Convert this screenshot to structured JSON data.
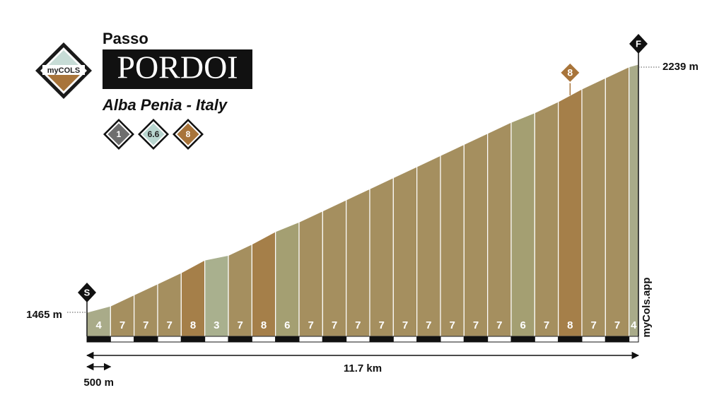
{
  "chart_data": {
    "type": "climb-profile",
    "prefix": "Passo",
    "title": "PORDOI",
    "subtitle": "Alba Penia - Italy",
    "logo": "myCOLS",
    "credit": "myCols.app",
    "badges": [
      1,
      6.6,
      8
    ],
    "badge_colors": [
      "#6e6e6e",
      "#b9d6d0",
      "#a8743a"
    ],
    "start_label": "S",
    "finish_label": "F",
    "values": [
      4,
      7,
      7,
      7,
      8,
      3,
      7,
      8,
      6,
      7,
      7,
      7,
      7,
      7,
      7,
      7,
      7,
      7,
      6,
      7,
      8,
      7,
      7,
      4
    ],
    "segment_km": [
      0.5,
      0.5,
      0.5,
      0.5,
      0.5,
      0.5,
      0.5,
      0.5,
      0.5,
      0.5,
      0.5,
      0.5,
      0.5,
      0.5,
      0.5,
      0.5,
      0.5,
      0.5,
      0.5,
      0.5,
      0.5,
      0.5,
      0.5,
      0.2
    ],
    "grade_colors": {
      "3": "#a9b08e",
      "4": "#a9ab89",
      "6": "#a49f72",
      "7": "#a58f5f",
      "8": "#a57f49"
    },
    "max_grade_marker": {
      "segment": 20,
      "label": 8
    },
    "ylim": [
      1465,
      2239
    ],
    "yticks": [
      {
        "value": 1465,
        "label": "1465 m"
      },
      {
        "value": 2239,
        "label": "2239 m"
      }
    ],
    "xlim": [
      0,
      11.7
    ],
    "total_distance": {
      "value": 11.7,
      "label": "11.7 km"
    },
    "scale": {
      "value": 0.5,
      "label": "500 m"
    }
  }
}
